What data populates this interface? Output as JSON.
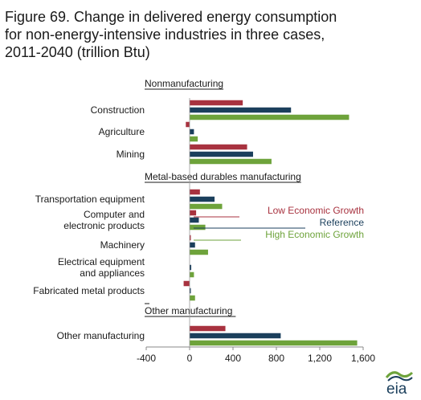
{
  "title_lines": [
    "Figure 69. Change in delivered energy consumption",
    "for non-energy-intensive industries in three cases,",
    "2011-2040 (trillion Btu)"
  ],
  "logo_text": "eia",
  "colors": {
    "low": "#a8323f",
    "reference": "#1b3f5c",
    "high": "#6ea33b"
  },
  "chart_data": {
    "type": "bar",
    "orientation": "horizontal",
    "xlim": [
      -400,
      1600
    ],
    "xticks": [
      {
        "value": -400,
        "label": "-400"
      },
      {
        "value": 0,
        "label": "0"
      },
      {
        "value": 400,
        "label": "400"
      },
      {
        "value": 800,
        "label": "800"
      },
      {
        "value": 1200,
        "label": "1,200"
      },
      {
        "value": 1600,
        "label": "1,600"
      }
    ],
    "legend": {
      "placement": "right, beside Computer and electronic products",
      "entries": [
        "Low Economic Growth",
        "Reference",
        "High Economic Growth"
      ]
    },
    "groups": [
      {
        "heading": "Nonmanufacturing",
        "categories": [
          {
            "label": [
              "Construction"
            ],
            "low": 490,
            "reference": 935,
            "high": 1470
          },
          {
            "label": [
              "Agriculture"
            ],
            "low": -35,
            "reference": 40,
            "high": 75
          },
          {
            "label": [
              "Mining"
            ],
            "low": 530,
            "reference": 585,
            "high": 755
          }
        ]
      },
      {
        "heading": "Metal-based durables manufacturing",
        "categories": [
          {
            "label": [
              "Transportation equipment"
            ],
            "low": 95,
            "reference": 230,
            "high": 300
          },
          {
            "label": [
              "Computer and",
              "electronic products"
            ],
            "low": 60,
            "reference": 85,
            "high": 145
          },
          {
            "label": [
              "Machinery"
            ],
            "low": 5,
            "reference": 50,
            "high": 170
          },
          {
            "label": [
              "Electrical equipment",
              "and appliances"
            ],
            "low": 0,
            "reference": 15,
            "high": 40
          },
          {
            "label": [
              "Fabricated metal products"
            ],
            "low": -55,
            "reference": 5,
            "high": 50
          }
        ]
      },
      {
        "heading": "Other manufacturing",
        "categories": [
          {
            "label": [
              "Other manufacturing"
            ],
            "low": 330,
            "reference": 840,
            "high": 1545
          }
        ]
      }
    ]
  }
}
